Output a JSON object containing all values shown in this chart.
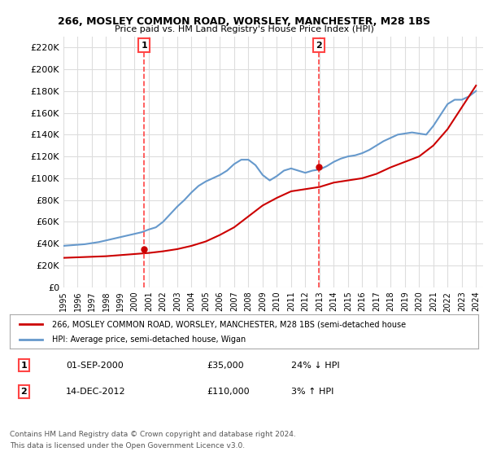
{
  "title1": "266, MOSLEY COMMON ROAD, WORSLEY, MANCHESTER, M28 1BS",
  "title2": "Price paid vs. HM Land Registry's House Price Index (HPI)",
  "ylabel_ticks": [
    0,
    20000,
    40000,
    60000,
    80000,
    100000,
    120000,
    140000,
    160000,
    180000,
    200000,
    220000
  ],
  "ylim": [
    0,
    230000
  ],
  "xlim_start": 1995.0,
  "xlim_end": 2024.5,
  "transaction1": {
    "label": "1",
    "date": "01-SEP-2000",
    "price": "£35,000",
    "hpi": "24% ↓ HPI",
    "x": 2000.67
  },
  "transaction2": {
    "label": "2",
    "date": "14-DEC-2012",
    "price": "£110,000",
    "hpi": "3% ↑ HPI",
    "x": 2012.96
  },
  "red_line_color": "#cc0000",
  "blue_line_color": "#6699cc",
  "vline_color": "#ff4444",
  "background_color": "#ffffff",
  "grid_color": "#dddddd",
  "legend_line1": "266, MOSLEY COMMON ROAD, WORSLEY, MANCHESTER, M28 1BS (semi-detached house",
  "legend_line2": "HPI: Average price, semi-detached house, Wigan",
  "footer1": "Contains HM Land Registry data © Crown copyright and database right 2024.",
  "footer2": "This data is licensed under the Open Government Licence v3.0.",
  "hpi_years": [
    1995,
    1995.5,
    1996,
    1996.5,
    1997,
    1997.5,
    1998,
    1998.5,
    1999,
    1999.5,
    2000,
    2000.5,
    2001,
    2001.5,
    2002,
    2002.5,
    2003,
    2003.5,
    2004,
    2004.5,
    2005,
    2005.5,
    2006,
    2006.5,
    2007,
    2007.5,
    2008,
    2008.5,
    2009,
    2009.5,
    2010,
    2010.5,
    2011,
    2011.5,
    2012,
    2012.5,
    2013,
    2013.5,
    2014,
    2014.5,
    2015,
    2015.5,
    2016,
    2016.5,
    2017,
    2017.5,
    2018,
    2018.5,
    2019,
    2019.5,
    2020,
    2020.5,
    2021,
    2021.5,
    2022,
    2022.5,
    2023,
    2023.5,
    2024
  ],
  "hpi_values": [
    38000,
    38500,
    39000,
    39500,
    40500,
    41500,
    43000,
    44500,
    46000,
    47500,
    49000,
    50500,
    53000,
    55000,
    60000,
    67000,
    74000,
    80000,
    87000,
    93000,
    97000,
    100000,
    103000,
    107000,
    113000,
    117000,
    117000,
    112000,
    103000,
    98000,
    102000,
    107000,
    109000,
    107000,
    105000,
    107000,
    108000,
    111000,
    115000,
    118000,
    120000,
    121000,
    123000,
    126000,
    130000,
    134000,
    137000,
    140000,
    141000,
    142000,
    141000,
    140000,
    148000,
    158000,
    168000,
    172000,
    172000,
    175000,
    180000
  ],
  "price_years": [
    1995,
    1996,
    1997,
    1998,
    1999,
    2000,
    2001,
    2002,
    2003,
    2004,
    2005,
    2006,
    2007,
    2008,
    2009,
    2010,
    2011,
    2012,
    2013,
    2014,
    2015,
    2016,
    2017,
    2018,
    2019,
    2020,
    2021,
    2022,
    2023,
    2024
  ],
  "price_values": [
    27000,
    27500,
    28000,
    28500,
    29500,
    30500,
    31500,
    33000,
    35000,
    38000,
    42000,
    48000,
    55000,
    65000,
    75000,
    82000,
    88000,
    90000,
    92000,
    96000,
    98000,
    100000,
    104000,
    110000,
    115000,
    120000,
    130000,
    145000,
    165000,
    185000
  ]
}
